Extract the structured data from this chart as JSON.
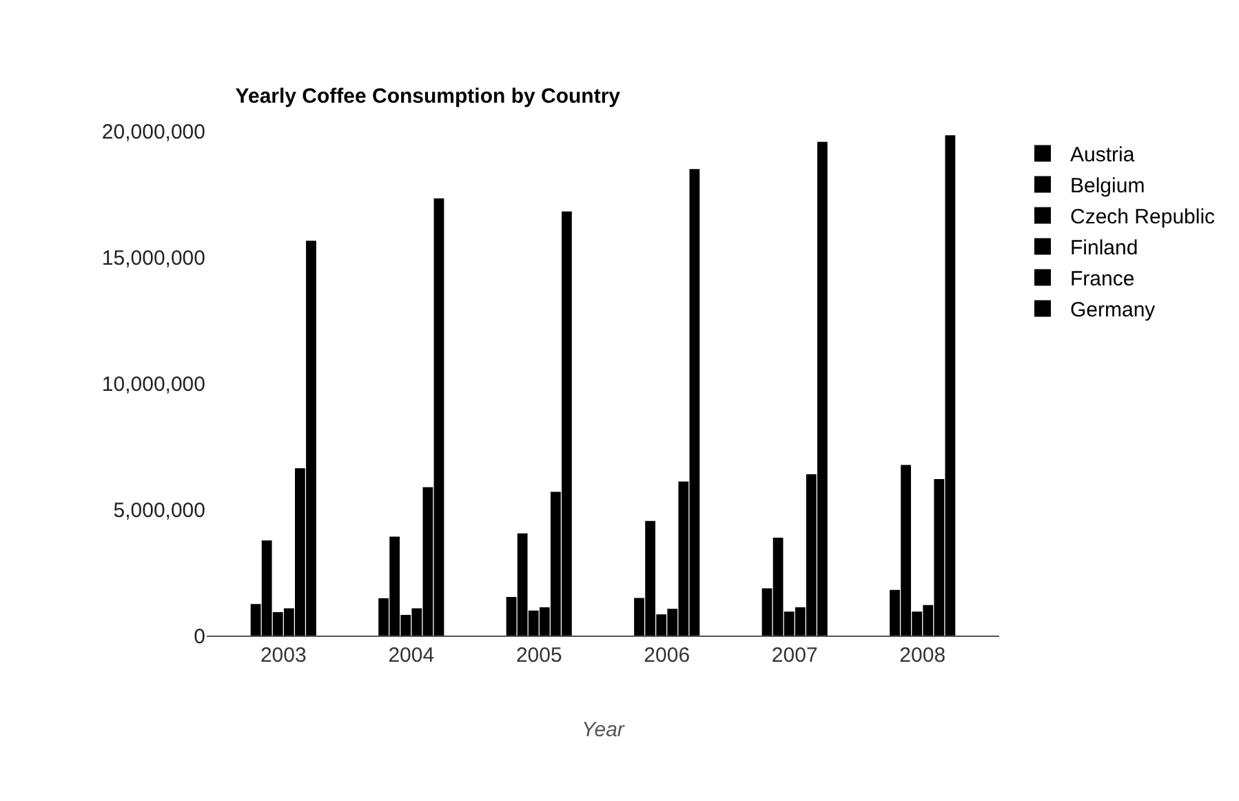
{
  "chart_data": {
    "type": "bar",
    "title": "Yearly Coffee Consumption by Country",
    "xlabel": "Year",
    "categories": [
      "2003",
      "2004",
      "2005",
      "2006",
      "2007",
      "2008"
    ],
    "series": [
      {
        "name": "Austria",
        "color": "#000000",
        "values": [
          1250000,
          1480000,
          1530000,
          1490000,
          1870000,
          1810000
        ]
      },
      {
        "name": "Belgium",
        "color": "#000000",
        "values": [
          3770000,
          3920000,
          4050000,
          4540000,
          3880000,
          6760000
        ]
      },
      {
        "name": "Czech Republic",
        "color": "#000000",
        "values": [
          930000,
          820000,
          990000,
          840000,
          950000,
          950000
        ]
      },
      {
        "name": "Finland",
        "color": "#000000",
        "values": [
          1080000,
          1080000,
          1120000,
          1060000,
          1120000,
          1210000
        ]
      },
      {
        "name": "France",
        "color": "#000000",
        "values": [
          6630000,
          5880000,
          5700000,
          6110000,
          6390000,
          6200000
        ]
      },
      {
        "name": "Germany",
        "color": "#000000",
        "values": [
          15650000,
          17330000,
          16810000,
          18490000,
          19570000,
          19830000
        ]
      }
    ],
    "ylim": [
      0,
      20000000
    ],
    "yticks": [
      {
        "value": 0,
        "label": "0"
      },
      {
        "value": 5000000,
        "label": "5,000,000"
      },
      {
        "value": 10000000,
        "label": "10,000,000"
      },
      {
        "value": 15000000,
        "label": "15,000,000"
      },
      {
        "value": 20000000,
        "label": "20,000,000"
      }
    ],
    "grid": false,
    "legend": "top right"
  }
}
